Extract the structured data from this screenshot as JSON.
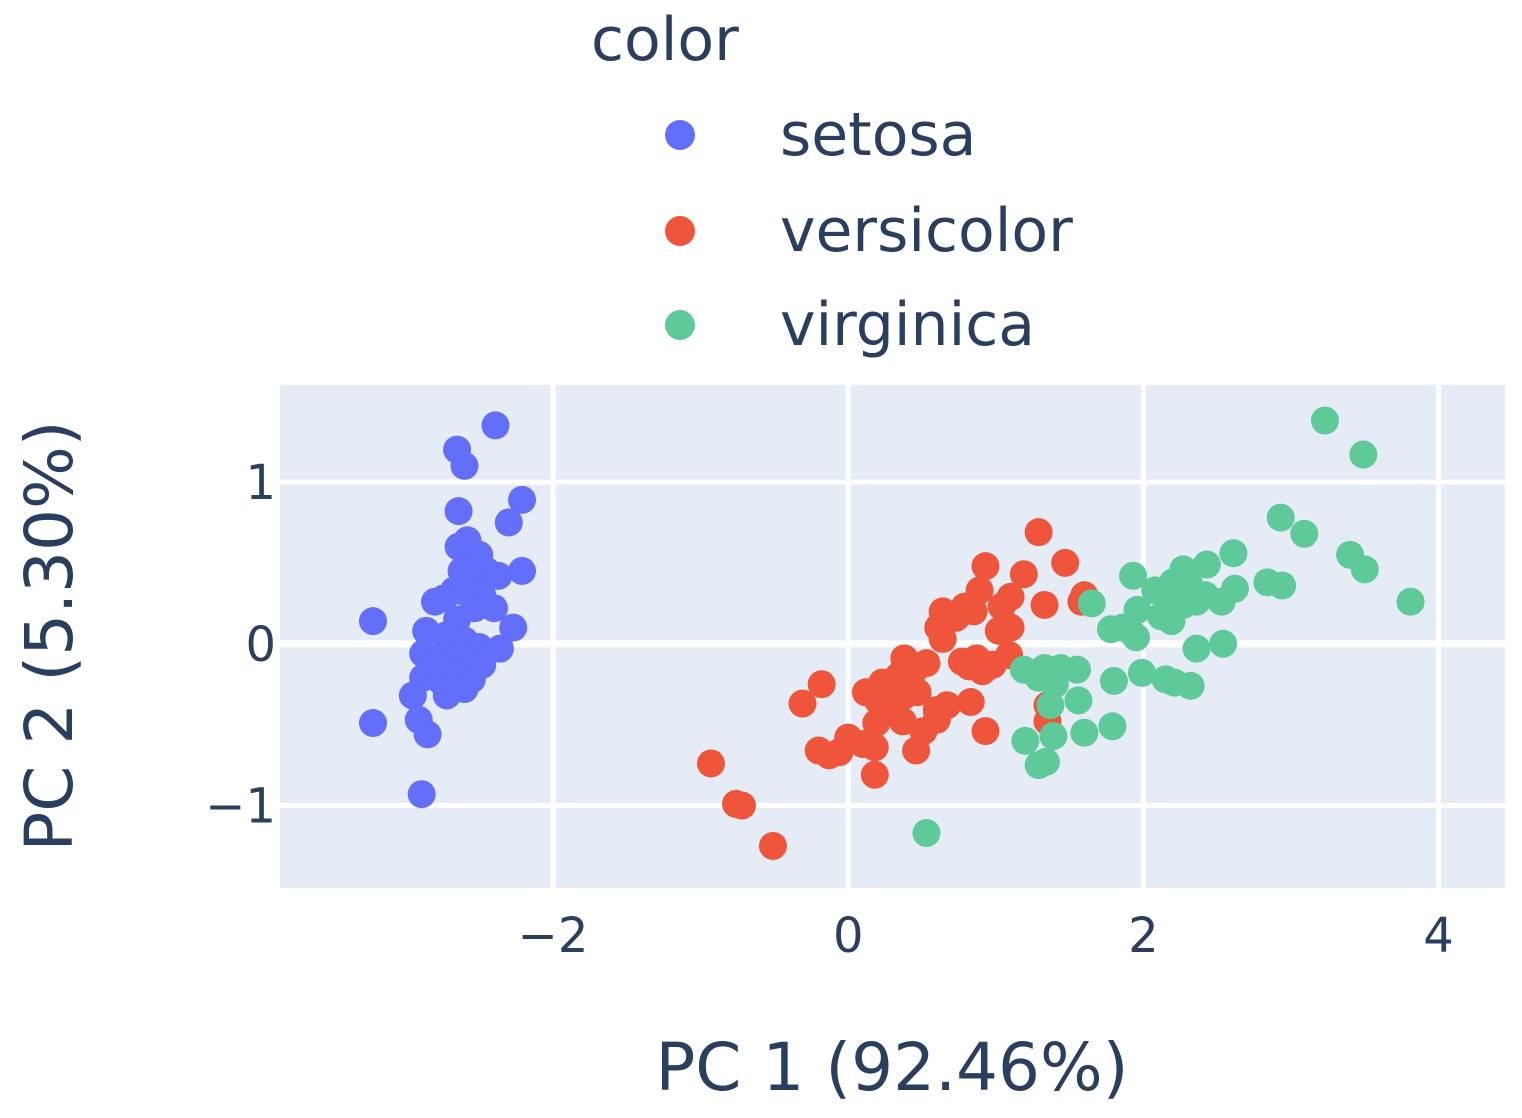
{
  "chart_data": {
    "type": "scatter",
    "title": "",
    "xlabel": "PC 1 (92.46%)",
    "ylabel": "PC 2 (5.30%)",
    "xlim": [
      -3.85,
      4.45
    ],
    "ylim": [
      -1.51,
      1.6
    ],
    "xticks": [
      -2,
      0,
      2,
      4
    ],
    "yticks": [
      -1,
      0,
      1
    ],
    "xtick_labels": [
      "−2",
      "0",
      "2",
      "4"
    ],
    "ytick_labels": [
      "−1",
      "0",
      "1"
    ],
    "grid": true,
    "legend": {
      "title": "color",
      "position": "top-center"
    },
    "plot_bgcolor": "#e5ecf6",
    "series": [
      {
        "name": "setosa",
        "color": "#636efa",
        "points": [
          [
            -2.39,
            1.35
          ],
          [
            -2.65,
            1.2
          ],
          [
            -2.6,
            1.1
          ],
          [
            -2.64,
            0.82
          ],
          [
            -2.21,
            0.89
          ],
          [
            -2.3,
            0.75
          ],
          [
            -2.58,
            0.64
          ],
          [
            -2.64,
            0.6
          ],
          [
            -2.56,
            0.55
          ],
          [
            -2.45,
            0.45
          ],
          [
            -2.37,
            0.42
          ],
          [
            -2.21,
            0.45
          ],
          [
            -2.55,
            0.4
          ],
          [
            -2.67,
            0.33
          ],
          [
            -2.74,
            0.28
          ],
          [
            -2.6,
            0.32
          ],
          [
            -2.48,
            0.3
          ],
          [
            -2.8,
            0.26
          ],
          [
            -2.65,
            0.15
          ],
          [
            -2.53,
            0.22
          ],
          [
            -2.4,
            0.22
          ],
          [
            -2.27,
            0.1
          ],
          [
            -2.86,
            0.08
          ],
          [
            -2.73,
            0.05
          ],
          [
            -2.6,
            0.02
          ],
          [
            -2.5,
            -0.02
          ],
          [
            -2.36,
            -0.03
          ],
          [
            -3.22,
            0.14
          ],
          [
            -2.88,
            -0.06
          ],
          [
            -2.75,
            -0.07
          ],
          [
            -2.63,
            -0.08
          ],
          [
            -2.83,
            -0.13
          ],
          [
            -2.7,
            -0.17
          ],
          [
            -2.58,
            -0.16
          ],
          [
            -2.48,
            -0.13
          ],
          [
            -2.88,
            -0.21
          ],
          [
            -2.76,
            -0.23
          ],
          [
            -2.65,
            -0.2
          ],
          [
            -2.55,
            -0.22
          ],
          [
            -2.72,
            -0.32
          ],
          [
            -2.95,
            -0.32
          ],
          [
            -2.91,
            -0.47
          ],
          [
            -3.22,
            -0.49
          ],
          [
            -2.85,
            -0.56
          ],
          [
            -2.89,
            -0.93
          ],
          [
            -2.69,
            -0.28
          ],
          [
            -2.78,
            -0.11
          ],
          [
            -2.6,
            -0.28
          ],
          [
            -2.62,
            0.45
          ],
          [
            -2.5,
            0.55
          ]
        ]
      },
      {
        "name": "versicolor",
        "color": "#ef553b",
        "points": [
          [
            1.29,
            0.69
          ],
          [
            1.47,
            0.5
          ],
          [
            0.93,
            0.48
          ],
          [
            1.19,
            0.43
          ],
          [
            0.89,
            0.33
          ],
          [
            1.33,
            0.24
          ],
          [
            1.58,
            0.26
          ],
          [
            1.1,
            0.29
          ],
          [
            0.79,
            0.23
          ],
          [
            0.64,
            0.2
          ],
          [
            1.04,
            0.23
          ],
          [
            0.85,
            0.2
          ],
          [
            0.73,
            0.16
          ],
          [
            1.1,
            0.1
          ],
          [
            0.61,
            0.1
          ],
          [
            1.02,
            0.08
          ],
          [
            0.64,
            0.03
          ],
          [
            1.09,
            -0.07
          ],
          [
            0.87,
            -0.09
          ],
          [
            0.98,
            -0.13
          ],
          [
            0.38,
            -0.09
          ],
          [
            0.77,
            -0.11
          ],
          [
            0.53,
            -0.12
          ],
          [
            0.82,
            -0.14
          ],
          [
            0.91,
            -0.17
          ],
          [
            0.34,
            -0.2
          ],
          [
            0.45,
            -0.16
          ],
          [
            0.23,
            -0.24
          ],
          [
            0.33,
            -0.22
          ],
          [
            0.28,
            -0.29
          ],
          [
            0.12,
            -0.3
          ],
          [
            0.2,
            -0.35
          ],
          [
            0.38,
            -0.32
          ],
          [
            0.47,
            -0.3
          ],
          [
            0.29,
            -0.4
          ],
          [
            0.83,
            -0.36
          ],
          [
            0.67,
            -0.38
          ],
          [
            0.6,
            -0.41
          ],
          [
            -0.18,
            -0.25
          ],
          [
            -0.31,
            -0.37
          ],
          [
            0.37,
            -0.48
          ],
          [
            0.19,
            -0.49
          ],
          [
            0.6,
            -0.47
          ],
          [
            0.93,
            -0.54
          ],
          [
            0.51,
            -0.54
          ],
          [
            0.0,
            -0.58
          ],
          [
            0.1,
            -0.62
          ],
          [
            -0.2,
            -0.66
          ],
          [
            -0.06,
            -0.67
          ],
          [
            0.46,
            -0.66
          ],
          [
            -0.13,
            -0.69
          ],
          [
            0.18,
            -0.64
          ],
          [
            0.18,
            -0.81
          ],
          [
            -0.93,
            -0.74
          ],
          [
            -0.76,
            -0.99
          ],
          [
            -0.72,
            -1.0
          ],
          [
            -0.51,
            -1.25
          ],
          [
            1.35,
            -0.38
          ],
          [
            1.35,
            -0.48
          ],
          [
            1.6,
            0.3
          ]
        ]
      },
      {
        "name": "virginica",
        "color": "#00cc96",
        "fill": "#5ec999",
        "points": [
          [
            3.23,
            1.38
          ],
          [
            3.49,
            1.17
          ],
          [
            2.93,
            0.78
          ],
          [
            3.09,
            0.68
          ],
          [
            3.4,
            0.55
          ],
          [
            3.5,
            0.46
          ],
          [
            3.81,
            0.26
          ],
          [
            2.61,
            0.56
          ],
          [
            2.27,
            0.46
          ],
          [
            2.43,
            0.49
          ],
          [
            2.31,
            0.37
          ],
          [
            2.62,
            0.34
          ],
          [
            2.84,
            0.38
          ],
          [
            2.94,
            0.36
          ],
          [
            2.2,
            0.38
          ],
          [
            2.36,
            0.26
          ],
          [
            2.08,
            0.33
          ],
          [
            2.16,
            0.3
          ],
          [
            2.27,
            0.24
          ],
          [
            1.93,
            0.42
          ],
          [
            2.12,
            0.17
          ],
          [
            2.42,
            0.3
          ],
          [
            2.53,
            0.26
          ],
          [
            1.65,
            0.25
          ],
          [
            1.96,
            0.21
          ],
          [
            2.19,
            0.14
          ],
          [
            1.91,
            0.08
          ],
          [
            1.78,
            0.09
          ],
          [
            1.95,
            0.04
          ],
          [
            1.86,
            0.1
          ],
          [
            2.54,
            0.0
          ],
          [
            2.36,
            -0.03
          ],
          [
            1.19,
            -0.16
          ],
          [
            1.33,
            -0.15
          ],
          [
            1.44,
            -0.15
          ],
          [
            1.55,
            -0.16
          ],
          [
            1.29,
            -0.21
          ],
          [
            1.4,
            -0.25
          ],
          [
            1.8,
            -0.23
          ],
          [
            1.99,
            -0.18
          ],
          [
            2.15,
            -0.22
          ],
          [
            2.21,
            -0.24
          ],
          [
            2.32,
            -0.26
          ],
          [
            1.37,
            -0.38
          ],
          [
            1.56,
            -0.35
          ],
          [
            1.79,
            -0.51
          ],
          [
            1.39,
            -0.57
          ],
          [
            1.6,
            -0.55
          ],
          [
            1.2,
            -0.6
          ],
          [
            1.34,
            -0.73
          ]
        ]
      }
    ],
    "extra_points": {
      "virginica": [
        [
          1.29,
          -0.75
        ],
        [
          0.53,
          -1.17
        ]
      ]
    }
  }
}
